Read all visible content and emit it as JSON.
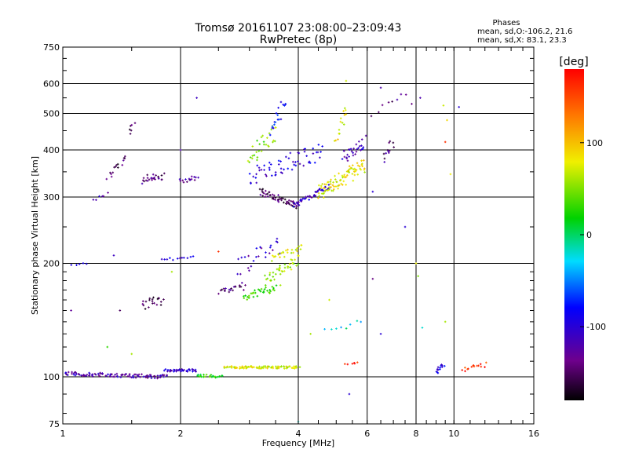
{
  "chart_data": {
    "type": "scatter",
    "title": "Tromsø 20161107 23:08:00–23:09:43",
    "subtitle": "RwPretec (8p)",
    "stats": {
      "heading": "Phases",
      "line1": "mean, sd,O:-106.2, 21.6",
      "line2": "mean, sd,X:  83.1, 23.3"
    },
    "xlabel": "Frequency [MHz]",
    "ylabel": "Stationary phase Virtual Height [km]",
    "x_scale": "log",
    "y_scale": "log",
    "xlim": [
      1,
      16
    ],
    "ylim": [
      75,
      750
    ],
    "grid": true,
    "x_ticks": [
      1,
      2,
      4,
      6,
      8,
      10,
      16
    ],
    "x_tick_labels": [
      "1",
      "2",
      "4",
      "6",
      "8",
      "10",
      "16"
    ],
    "x_gridlines": [
      2,
      4,
      6,
      8,
      10
    ],
    "y_ticks": [
      75,
      100,
      200,
      300,
      400,
      500,
      600,
      750
    ],
    "y_tick_labels": [
      "75",
      "100",
      "200",
      "300",
      "400",
      "500",
      "600",
      "750"
    ],
    "y_gridlines": [
      100,
      200,
      300,
      400,
      500,
      600
    ],
    "colorbar": {
      "label": "[deg]",
      "range": [
        -180,
        180
      ],
      "ticks": [
        100,
        0,
        -100
      ],
      "tick_labels": [
        "100",
        "0",
        "-100"
      ]
    },
    "traces": [
      {
        "f0": 1.0,
        "f1": 1.85,
        "h0": 102,
        "h1": 100,
        "phase": -120,
        "n": 110,
        "jitter": 0.012
      },
      {
        "f0": 1.82,
        "f1": 2.2,
        "h0": 104,
        "h1": 104,
        "phase": -105,
        "n": 40,
        "jitter": 0.008
      },
      {
        "f0": 2.2,
        "f1": 2.55,
        "h0": 101,
        "h1": 100,
        "phase": 25,
        "n": 25,
        "jitter": 0.008
      },
      {
        "f0": 2.6,
        "f1": 4.0,
        "h0": 106,
        "h1": 106,
        "phase": 75,
        "n": 90,
        "jitter": 0.008
      },
      {
        "f0": 2.5,
        "f1": 2.9,
        "h0": 168,
        "h1": 176,
        "phase": -140,
        "n": 20,
        "jitter": 0.02
      },
      {
        "f0": 2.9,
        "f1": 3.5,
        "h0": 163,
        "h1": 172,
        "phase": 30,
        "n": 35,
        "jitter": 0.02
      },
      {
        "f0": 3.3,
        "f1": 4.0,
        "h0": 180,
        "h1": 205,
        "phase": 55,
        "n": 40,
        "jitter": 0.03
      },
      {
        "f0": 2.8,
        "f1": 3.6,
        "h0": 195,
        "h1": 225,
        "phase": -110,
        "n": 25,
        "jitter": 0.06
      },
      {
        "f0": 3.4,
        "f1": 4.1,
        "h0": 205,
        "h1": 220,
        "phase": 75,
        "n": 25,
        "jitter": 0.02
      },
      {
        "f0": 3.2,
        "f1": 4.0,
        "h0": 310,
        "h1": 285,
        "phase": -150,
        "n": 60,
        "jitter": 0.02
      },
      {
        "f0": 3.9,
        "f1": 4.8,
        "h0": 285,
        "h1": 320,
        "phase": -110,
        "n": 45,
        "jitter": 0.015
      },
      {
        "f0": 4.5,
        "f1": 5.9,
        "h0": 310,
        "h1": 360,
        "phase": 80,
        "n": 90,
        "jitter": 0.05
      },
      {
        "f0": 5.2,
        "f1": 5.9,
        "h0": 380,
        "h1": 420,
        "phase": -110,
        "n": 30,
        "jitter": 0.04
      },
      {
        "f0": 3.0,
        "f1": 4.6,
        "h0": 340,
        "h1": 400,
        "phase": -100,
        "n": 60,
        "jitter": 0.06
      },
      {
        "f0": 3.0,
        "f1": 3.5,
        "h0": 380,
        "h1": 450,
        "phase": 50,
        "n": 30,
        "jitter": 0.06
      },
      {
        "f0": 3.4,
        "f1": 3.7,
        "h0": 450,
        "h1": 530,
        "phase": -80,
        "n": 18,
        "jitter": 0.05
      },
      {
        "f0": 5.0,
        "f1": 5.3,
        "h0": 430,
        "h1": 520,
        "phase": 80,
        "n": 15,
        "jitter": 0.04
      },
      {
        "f0": 1.3,
        "f1": 1.45,
        "h0": 340,
        "h1": 380,
        "phase": -150,
        "n": 15,
        "jitter": 0.02
      },
      {
        "f0": 1.48,
        "f1": 1.52,
        "h0": 445,
        "h1": 470,
        "phase": -150,
        "n": 6,
        "jitter": 0.01
      },
      {
        "f0": 1.6,
        "f1": 1.8,
        "h0": 335,
        "h1": 340,
        "phase": -140,
        "n": 25,
        "jitter": 0.03
      },
      {
        "f0": 2.0,
        "f1": 2.2,
        "h0": 330,
        "h1": 340,
        "phase": -130,
        "n": 15,
        "jitter": 0.015
      },
      {
        "f0": 1.2,
        "f1": 1.3,
        "h0": 295,
        "h1": 305,
        "phase": -110,
        "n": 6,
        "jitter": 0.01
      },
      {
        "f0": 1.6,
        "f1": 1.8,
        "h0": 155,
        "h1": 160,
        "phase": -150,
        "n": 20,
        "jitter": 0.03
      },
      {
        "f0": 1.8,
        "f1": 2.15,
        "h0": 205,
        "h1": 208,
        "phase": -105,
        "n": 12,
        "jitter": 0.01
      },
      {
        "f0": 1.05,
        "f1": 1.15,
        "h0": 198,
        "h1": 200,
        "phase": -110,
        "n": 5,
        "jitter": 0.005
      },
      {
        "f0": 6.6,
        "f1": 7.0,
        "h0": 380,
        "h1": 420,
        "phase": -140,
        "n": 12,
        "jitter": 0.03
      },
      {
        "f0": 6.2,
        "f1": 7.6,
        "h0": 500,
        "h1": 560,
        "phase": -140,
        "n": 8,
        "jitter": 0.03
      },
      {
        "f0": 9.0,
        "f1": 9.4,
        "h0": 103,
        "h1": 108,
        "phase": -90,
        "n": 15,
        "jitter": 0.015
      },
      {
        "f0": 10.5,
        "f1": 12.0,
        "h0": 104,
        "h1": 108,
        "phase": 160,
        "n": 15,
        "jitter": 0.015
      },
      {
        "f0": 5.3,
        "f1": 5.7,
        "h0": 108,
        "h1": 109,
        "phase": 160,
        "n": 6,
        "jitter": 0.005
      },
      {
        "f0": 4.7,
        "f1": 5.8,
        "h0": 130,
        "h1": 140,
        "phase": -20,
        "n": 8,
        "jitter": 0.03
      }
    ],
    "scatter_points": [
      [
        2.2,
        550,
        -110
      ],
      [
        2.0,
        400,
        -120
      ],
      [
        5.3,
        610,
        70
      ],
      [
        6.5,
        585,
        -120
      ],
      [
        8.2,
        550,
        -120
      ],
      [
        7.8,
        530,
        -140
      ],
      [
        9.4,
        525,
        70
      ],
      [
        10.3,
        520,
        -100
      ],
      [
        9.6,
        480,
        90
      ],
      [
        6.2,
        310,
        -100
      ],
      [
        7.5,
        250,
        -100
      ],
      [
        8.1,
        185,
        50
      ],
      [
        6.2,
        182,
        -140
      ],
      [
        8.3,
        135,
        -20
      ],
      [
        9.5,
        140,
        60
      ],
      [
        6.5,
        130,
        -100
      ],
      [
        5.4,
        90,
        -100
      ],
      [
        4.0,
        76,
        -20
      ],
      [
        2.5,
        215,
        160
      ],
      [
        2.9,
        170,
        -140
      ],
      [
        1.05,
        150,
        -130
      ],
      [
        1.4,
        150,
        -150
      ],
      [
        1.3,
        120,
        30
      ],
      [
        1.5,
        115,
        60
      ],
      [
        1.9,
        190,
        60
      ],
      [
        1.35,
        210,
        -110
      ],
      [
        9.8,
        345,
        80
      ],
      [
        9.5,
        420,
        160
      ],
      [
        3.6,
        175,
        60
      ],
      [
        4.8,
        160,
        70
      ],
      [
        8.0,
        200,
        80
      ],
      [
        4.3,
        130,
        60
      ]
    ]
  }
}
